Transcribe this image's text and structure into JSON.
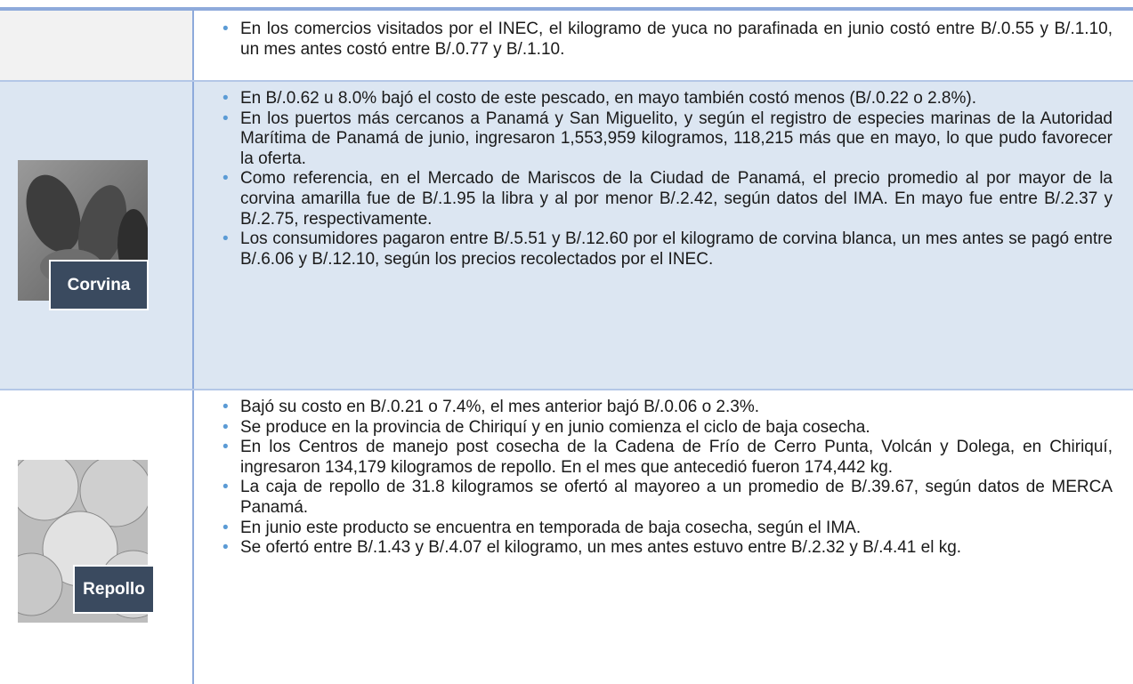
{
  "rows": [
    {
      "bullets": [
        "En los comercios visitados por el INEC, el kilogramo de yuca no parafinada en junio costó entre B/.0.55 y B/.1.10, un mes antes costó entre B/.0.77 y B/.1.10."
      ]
    },
    {
      "label": "Corvina",
      "bullets": [
        "En B/.0.62 u 8.0% bajó el costo de este pescado, en mayo también costó menos (B/.0.22 o 2.8%).",
        "En los puertos más cercanos a Panamá y San Miguelito, y según el registro de especies marinas de la Autoridad Marítima de Panamá de junio, ingresaron 1,553,959 kilogramos, 118,215 más que en mayo, lo que pudo favorecer la oferta.",
        "Como referencia, en el Mercado de Mariscos de la Ciudad de Panamá, el precio promedio al por mayor de la corvina amarilla fue de B/.1.95 la libra y al por menor B/.2.42, según datos del IMA.  En mayo fue entre B/.2.37 y B/.2.75, respectivamente.",
        "Los consumidores pagaron entre B/.5.51 y B/.12.60 por el kilogramo de corvina blanca, un mes antes se pagó entre B/.6.06 y B/.12.10, según los precios recolectados por el INEC."
      ]
    },
    {
      "label": "Repollo",
      "bullets": [
        "Bajó su costo en B/.0.21 o 7.4%, el mes anterior bajó B/.0.06 o 2.3%.",
        "Se produce en la provincia de Chiriquí y en junio comienza el ciclo de baja cosecha.",
        "En los Centros de manejo post cosecha de la Cadena de Frío de Cerro Punta, Volcán y Dolega, en Chiriquí, ingresaron 134,179 kilogramos de repollo.  En el mes que antecedió fueron 174,442 kg.",
        "La caja de repollo de 31.8 kilogramos se ofertó al mayoreo a un promedio de B/.39.67, según datos de MERCA Panamá.",
        "En junio este producto se encuentra en temporada de baja cosecha, según el IMA.",
        "Se ofertó entre B/.1.43 y B/.4.07 el kilogramo, un mes antes estuvo entre B/.2.32 y B/.4.41 el kg."
      ]
    }
  ]
}
